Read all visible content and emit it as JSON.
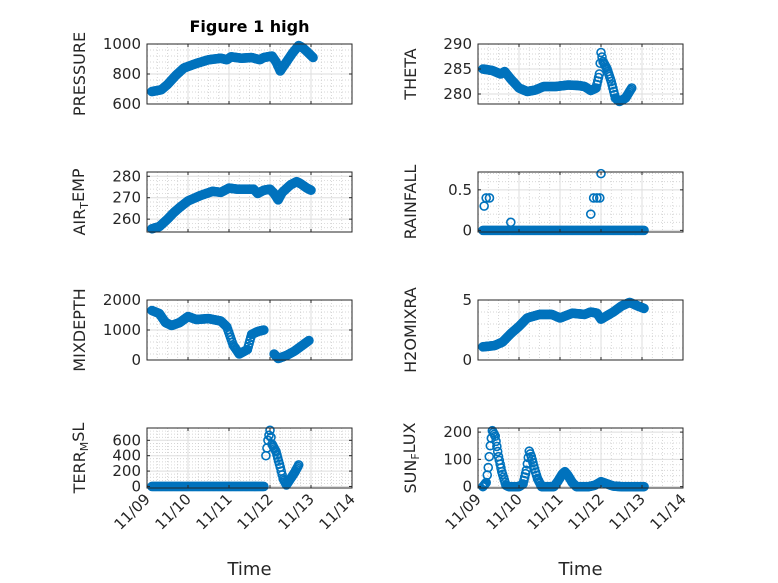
{
  "figure": {
    "title": "Figure 1 high"
  },
  "chart_data": [
    {
      "type": "scatter",
      "id": "pressure",
      "title": "Figure 1 high",
      "ylabel": "PRESSURE",
      "ylabel_sub": "",
      "xlabel": "",
      "ylim": [
        600,
        1000
      ],
      "yticks": [
        600,
        800,
        1000
      ],
      "ytick_labels": [
        "600",
        "800",
        "1000"
      ],
      "xlim": [
        0,
        5
      ],
      "xticks": [
        0,
        1,
        2,
        3,
        4,
        5
      ],
      "xtick_labels": [
        "11/09",
        "11/10",
        "11/11",
        "11/12",
        "11/13",
        "11/14"
      ],
      "grid": true,
      "color": "#0072BD",
      "curve": [
        [
          0.12,
          683
        ],
        [
          0.35,
          695
        ],
        [
          0.5,
          730
        ],
        [
          0.7,
          790
        ],
        [
          0.9,
          840
        ],
        [
          1.2,
          870
        ],
        [
          1.5,
          895
        ],
        [
          1.8,
          905
        ],
        [
          1.95,
          895
        ],
        [
          2.05,
          915
        ],
        [
          2.3,
          905
        ],
        [
          2.55,
          910
        ],
        [
          2.75,
          895
        ],
        [
          2.85,
          910
        ],
        [
          3.05,
          920
        ],
        [
          3.15,
          880
        ],
        [
          3.25,
          820
        ],
        [
          3.4,
          880
        ],
        [
          3.55,
          940
        ],
        [
          3.7,
          990
        ],
        [
          3.8,
          975
        ],
        [
          3.9,
          950
        ],
        [
          4.05,
          910
        ]
      ]
    },
    {
      "type": "scatter",
      "id": "theta",
      "title": "",
      "ylabel": "THETA",
      "ylabel_sub": "",
      "xlabel": "",
      "ylim": [
        278,
        290
      ],
      "yticks": [
        280,
        285,
        290
      ],
      "ytick_labels": [
        "280",
        "285",
        "290"
      ],
      "xlim": [
        0,
        5
      ],
      "xticks": [
        0,
        1,
        2,
        3,
        4,
        5
      ],
      "xtick_labels": [
        "11/09",
        "11/10",
        "11/11",
        "11/12",
        "11/13",
        "11/14"
      ],
      "grid": true,
      "color": "#0072BD",
      "curve": [
        [
          0.12,
          285
        ],
        [
          0.35,
          284.7
        ],
        [
          0.55,
          284
        ],
        [
          0.65,
          284.5
        ],
        [
          0.8,
          283
        ],
        [
          1.0,
          281.2
        ],
        [
          1.2,
          280.5
        ],
        [
          1.4,
          280.8
        ],
        [
          1.6,
          281.5
        ],
        [
          1.9,
          281.5
        ],
        [
          2.2,
          281.8
        ],
        [
          2.45,
          281.7
        ],
        [
          2.6,
          281.5
        ],
        [
          2.75,
          280.7
        ],
        [
          2.88,
          281.2
        ],
        [
          2.96,
          284
        ],
        [
          3.0,
          288.3
        ],
        [
          3.05,
          286.5
        ],
        [
          3.15,
          285
        ],
        [
          3.25,
          282.5
        ],
        [
          3.35,
          279.2
        ],
        [
          3.45,
          278.5
        ],
        [
          3.6,
          279.2
        ],
        [
          3.75,
          281.2
        ]
      ]
    },
    {
      "type": "scatter",
      "id": "airtemp",
      "title": "",
      "ylabel": "AIR",
      "ylabel_sub": "T",
      "ylabel_rest": "EMP",
      "xlabel": "",
      "ylim": [
        254,
        282
      ],
      "yticks": [
        260,
        270,
        280
      ],
      "ytick_labels": [
        "260",
        "270",
        "280"
      ],
      "xlim": [
        0,
        5
      ],
      "xticks": [
        0,
        1,
        2,
        3,
        4,
        5
      ],
      "xtick_labels": [
        "11/09",
        "11/10",
        "11/11",
        "11/12",
        "11/13",
        "11/14"
      ],
      "grid": true,
      "color": "#0072BD",
      "curve": [
        [
          0.12,
          255.5
        ],
        [
          0.3,
          256.5
        ],
        [
          0.5,
          260
        ],
        [
          0.65,
          263
        ],
        [
          0.8,
          265.5
        ],
        [
          1.0,
          268.5
        ],
        [
          1.3,
          271
        ],
        [
          1.6,
          273
        ],
        [
          1.8,
          272.5
        ],
        [
          2.0,
          274.5
        ],
        [
          2.2,
          274
        ],
        [
          2.6,
          274
        ],
        [
          2.7,
          272
        ],
        [
          2.85,
          273.5
        ],
        [
          3.0,
          274
        ],
        [
          3.1,
          272
        ],
        [
          3.2,
          269
        ],
        [
          3.3,
          272.5
        ],
        [
          3.5,
          276
        ],
        [
          3.65,
          277.5
        ],
        [
          3.75,
          276.5
        ],
        [
          3.9,
          274.5
        ],
        [
          4.0,
          273.5
        ]
      ]
    },
    {
      "type": "scatter",
      "id": "rainfall",
      "title": "",
      "ylabel": "RAINFALL",
      "ylabel_sub": "",
      "xlabel": "",
      "ylim": [
        -0.02,
        0.72
      ],
      "yticks": [
        0,
        0.5
      ],
      "ytick_labels": [
        "0",
        "0.5"
      ],
      "xlim": [
        0,
        5
      ],
      "xticks": [
        0,
        1,
        2,
        3,
        4,
        5
      ],
      "xtick_labels": [
        "11/09",
        "11/10",
        "11/11",
        "11/12",
        "11/13",
        "11/14"
      ],
      "grid": true,
      "color": "#0072BD",
      "zero_range": [
        0.12,
        4.05
      ],
      "spikes": [
        [
          0.15,
          0.3
        ],
        [
          0.2,
          0.4
        ],
        [
          0.28,
          0.4
        ],
        [
          0.8,
          0.1
        ],
        [
          2.75,
          0.2
        ],
        [
          2.82,
          0.4
        ],
        [
          2.9,
          0.4
        ],
        [
          2.97,
          0.4
        ],
        [
          3.0,
          0.7
        ]
      ]
    },
    {
      "type": "scatter",
      "id": "mixdepth",
      "title": "",
      "ylabel": "MIXDEPTH",
      "ylabel_sub": "",
      "xlabel": "",
      "ylim": [
        0,
        2000
      ],
      "yticks": [
        0,
        1000,
        2000
      ],
      "ytick_labels": [
        "0",
        "1000",
        "2000"
      ],
      "xlim": [
        0,
        5
      ],
      "xticks": [
        0,
        1,
        2,
        3,
        4,
        5
      ],
      "xtick_labels": [
        "11/09",
        "11/10",
        "11/11",
        "11/12",
        "11/13",
        "11/14"
      ],
      "grid": true,
      "color": "#0072BD",
      "curve": [
        [
          0.12,
          1650
        ],
        [
          0.3,
          1550
        ],
        [
          0.45,
          1250
        ],
        [
          0.6,
          1150
        ],
        [
          0.8,
          1250
        ],
        [
          1.0,
          1450
        ],
        [
          1.2,
          1350
        ],
        [
          1.5,
          1380
        ],
        [
          1.8,
          1300
        ],
        [
          1.95,
          1100
        ],
        [
          2.1,
          500
        ],
        [
          2.25,
          200
        ],
        [
          2.45,
          350
        ],
        [
          2.55,
          850
        ],
        [
          2.7,
          950
        ],
        [
          2.85,
          1000
        ],
        [
          2.95,
          null
        ],
        [
          3.1,
          200
        ],
        [
          3.2,
          50
        ],
        [
          3.4,
          150
        ],
        [
          3.6,
          300
        ],
        [
          3.8,
          500
        ],
        [
          3.95,
          650
        ]
      ]
    },
    {
      "type": "scatter",
      "id": "h2omixra",
      "title": "",
      "ylabel": "H2OMIXRA",
      "ylabel_sub": "",
      "xlabel": "",
      "ylim": [
        0,
        5
      ],
      "yticks": [
        0,
        5
      ],
      "ytick_labels": [
        "0",
        "5"
      ],
      "xlim": [
        0,
        5
      ],
      "xticks": [
        0,
        1,
        2,
        3,
        4,
        5
      ],
      "xtick_labels": [
        "11/09",
        "11/10",
        "11/11",
        "11/12",
        "11/13",
        "11/14"
      ],
      "grid": true,
      "color": "#0072BD",
      "curve": [
        [
          0.12,
          1.1
        ],
        [
          0.4,
          1.2
        ],
        [
          0.6,
          1.5
        ],
        [
          0.8,
          2.2
        ],
        [
          1.0,
          2.8
        ],
        [
          1.2,
          3.5
        ],
        [
          1.5,
          3.8
        ],
        [
          1.8,
          3.8
        ],
        [
          2.0,
          3.5
        ],
        [
          2.3,
          3.9
        ],
        [
          2.6,
          3.8
        ],
        [
          2.75,
          4.0
        ],
        [
          2.9,
          3.9
        ],
        [
          3.0,
          3.4
        ],
        [
          3.15,
          3.7
        ],
        [
          3.3,
          4.0
        ],
        [
          3.5,
          4.5
        ],
        [
          3.7,
          4.8
        ],
        [
          3.9,
          4.5
        ],
        [
          4.05,
          4.3
        ]
      ]
    },
    {
      "type": "scatter",
      "id": "terrmsl",
      "title": "",
      "ylabel": "TERR",
      "ylabel_sub": "M",
      "ylabel_rest": "SL",
      "xlabel": "Time",
      "ylim": [
        -20,
        760
      ],
      "yticks": [
        0,
        200,
        400,
        600
      ],
      "ytick_labels": [
        "0",
        "200",
        "400",
        "600"
      ],
      "xlim": [
        0,
        5
      ],
      "xticks": [
        0,
        1,
        2,
        3,
        4,
        5
      ],
      "xtick_labels": [
        "11/09",
        "11/10",
        "11/11",
        "11/12",
        "11/13",
        "11/14"
      ],
      "grid": true,
      "color": "#0072BD",
      "zero_range": [
        0.12,
        2.85
      ],
      "curve": [
        [
          2.9,
          400
        ],
        [
          2.95,
          600
        ],
        [
          3.0,
          730
        ],
        [
          3.05,
          550
        ],
        [
          3.15,
          450
        ],
        [
          3.25,
          250
        ],
        [
          3.32,
          100
        ],
        [
          3.4,
          20
        ],
        [
          3.5,
          100
        ],
        [
          3.6,
          180
        ],
        [
          3.7,
          280
        ]
      ]
    },
    {
      "type": "scatter",
      "id": "sunflux",
      "title": "",
      "ylabel": "SUN",
      "ylabel_sub": "F",
      "ylabel_rest": "LUX",
      "xlabel": "Time",
      "ylim": [
        -5,
        215
      ],
      "yticks": [
        0,
        100,
        200
      ],
      "ytick_labels": [
        "0",
        "100",
        "200"
      ],
      "xlim": [
        0,
        5
      ],
      "xticks": [
        0,
        1,
        2,
        3,
        4,
        5
      ],
      "xtick_labels": [
        "11/09",
        "11/10",
        "11/11",
        "11/12",
        "11/13",
        "11/14"
      ],
      "grid": true,
      "color": "#0072BD",
      "curve": [
        [
          0.12,
          0
        ],
        [
          0.2,
          15
        ],
        [
          0.25,
          70
        ],
        [
          0.3,
          150
        ],
        [
          0.35,
          205
        ],
        [
          0.42,
          185
        ],
        [
          0.5,
          110
        ],
        [
          0.58,
          55
        ],
        [
          0.68,
          5
        ],
        [
          0.75,
          0
        ],
        [
          1.0,
          0
        ],
        [
          1.1,
          10
        ],
        [
          1.18,
          60
        ],
        [
          1.25,
          130
        ],
        [
          1.3,
          110
        ],
        [
          1.38,
          65
        ],
        [
          1.45,
          30
        ],
        [
          1.55,
          0
        ],
        [
          1.85,
          0
        ],
        [
          1.95,
          20
        ],
        [
          2.05,
          45
        ],
        [
          2.12,
          55
        ],
        [
          2.2,
          40
        ],
        [
          2.3,
          15
        ],
        [
          2.4,
          0
        ],
        [
          2.7,
          0
        ],
        [
          2.85,
          5
        ],
        [
          3.0,
          18
        ],
        [
          3.15,
          10
        ],
        [
          3.3,
          2
        ],
        [
          3.5,
          0
        ],
        [
          4.05,
          0
        ]
      ]
    }
  ]
}
